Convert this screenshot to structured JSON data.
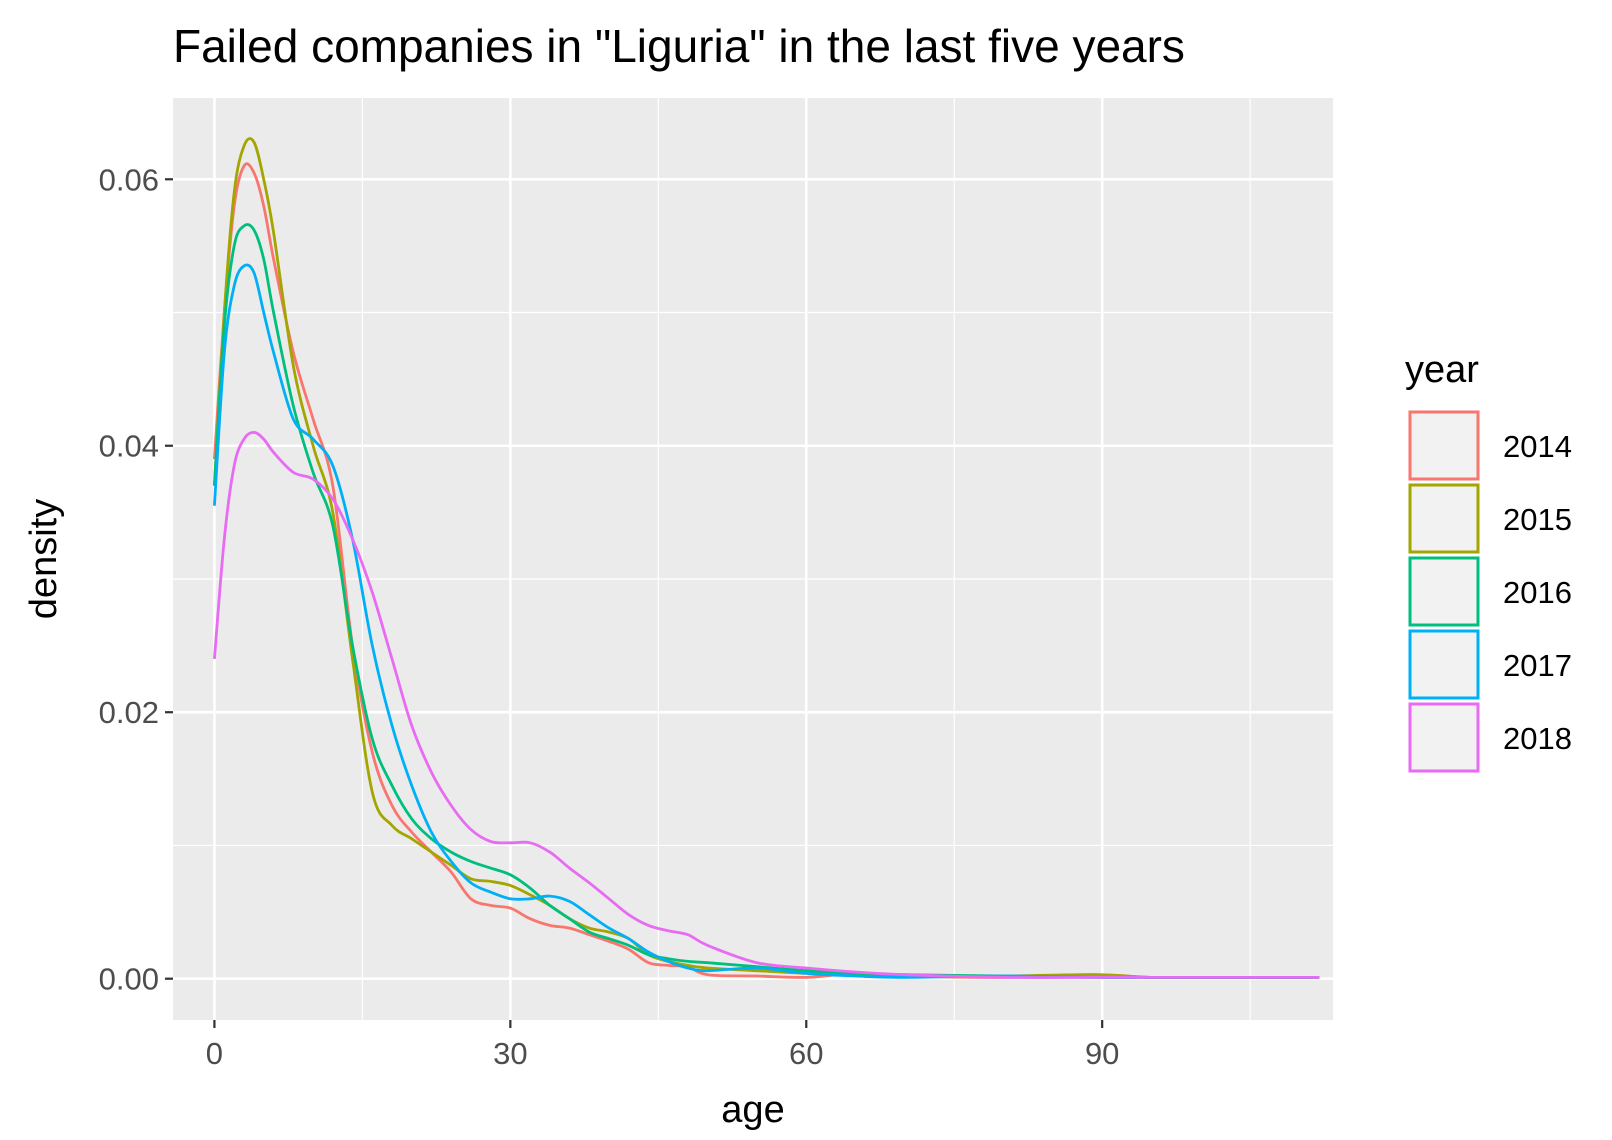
{
  "chart_data": {
    "type": "line",
    "title": "Failed companies in \"Liguria\" in the last five years",
    "xlabel": "age",
    "ylabel": "density",
    "xlim": [
      -4.2,
      113.4
    ],
    "ylim": [
      -0.0031,
      0.0661
    ],
    "x_ticks": [
      0,
      30,
      60,
      90
    ],
    "x_tick_labels": [
      "0",
      "30",
      "60",
      "90"
    ],
    "y_ticks": [
      0,
      0.02,
      0.04,
      0.06
    ],
    "y_tick_labels": [
      "0.00",
      "0.02",
      "0.04",
      "0.06"
    ],
    "grid": true,
    "legend": {
      "title": "year",
      "position": "right"
    },
    "series": [
      {
        "name": "2014",
        "color": "#F8766D",
        "x": [
          0,
          1,
          2,
          3,
          4,
          5,
          6,
          8,
          10,
          12,
          14,
          16,
          18,
          20,
          22,
          24,
          26,
          28,
          30,
          32,
          34,
          36,
          38,
          40,
          42,
          44,
          46,
          48,
          50,
          55,
          60,
          65,
          70,
          80,
          89,
          95,
          100,
          105,
          112
        ],
        "y": [
          0.039,
          0.05,
          0.058,
          0.061,
          0.0605,
          0.058,
          0.054,
          0.047,
          0.042,
          0.037,
          0.025,
          0.017,
          0.013,
          0.011,
          0.0095,
          0.008,
          0.006,
          0.0055,
          0.0053,
          0.0045,
          0.004,
          0.0038,
          0.0033,
          0.0028,
          0.0022,
          0.0012,
          0.001,
          0.0009,
          0.0003,
          0.0002,
          0.0001,
          0.0004,
          0.0002,
          0.0001,
          0.0003,
          0.0001,
          0.0001,
          0.0001,
          0.0001
        ]
      },
      {
        "name": "2015",
        "color": "#A3A500",
        "x": [
          0,
          1,
          2,
          3,
          4,
          5,
          6,
          8,
          10,
          12,
          14,
          16,
          18,
          20,
          22,
          24,
          26,
          28,
          30,
          32,
          34,
          36,
          38,
          40,
          42,
          44,
          46,
          48,
          50,
          55,
          60,
          65,
          70,
          80,
          89,
          95,
          100,
          105,
          112
        ],
        "y": [
          0.037,
          0.05,
          0.059,
          0.0625,
          0.0628,
          0.06,
          0.056,
          0.046,
          0.04,
          0.035,
          0.024,
          0.014,
          0.0115,
          0.0105,
          0.0095,
          0.0085,
          0.0075,
          0.0073,
          0.007,
          0.0063,
          0.0055,
          0.0045,
          0.0038,
          0.0035,
          0.003,
          0.0018,
          0.0013,
          0.001,
          0.0008,
          0.0006,
          0.0004,
          0.0003,
          0.0002,
          0.0002,
          0.0003,
          0.0001,
          0.0001,
          0.0001,
          0.0001
        ]
      },
      {
        "name": "2016",
        "color": "#00BF7D",
        "x": [
          0,
          1,
          2,
          3,
          4,
          5,
          6,
          8,
          10,
          12,
          14,
          16,
          18,
          20,
          22,
          24,
          26,
          28,
          30,
          32,
          34,
          36,
          38,
          40,
          42,
          44,
          46,
          48,
          50,
          55,
          60,
          65,
          70,
          80,
          89,
          95,
          100,
          105,
          112
        ],
        "y": [
          0.037,
          0.049,
          0.055,
          0.0565,
          0.0562,
          0.054,
          0.05,
          0.043,
          0.038,
          0.034,
          0.025,
          0.018,
          0.0145,
          0.012,
          0.0105,
          0.0095,
          0.0088,
          0.0083,
          0.0078,
          0.0068,
          0.0055,
          0.0045,
          0.0035,
          0.003,
          0.0025,
          0.0018,
          0.0015,
          0.0013,
          0.0012,
          0.0009,
          0.0006,
          0.0004,
          0.0003,
          0.0002,
          0.0001,
          0.0001,
          0.0001,
          0.0001,
          0.0001
        ]
      },
      {
        "name": "2017",
        "color": "#00B0F6",
        "x": [
          0,
          1,
          2,
          3,
          4,
          5,
          6,
          8,
          10,
          12,
          14,
          16,
          18,
          20,
          22,
          24,
          26,
          28,
          30,
          32,
          34,
          36,
          38,
          40,
          42,
          44,
          46,
          48,
          50,
          55,
          60,
          65,
          70,
          80,
          89,
          95,
          100,
          105,
          112
        ],
        "y": [
          0.0355,
          0.047,
          0.052,
          0.0535,
          0.053,
          0.05,
          0.047,
          0.042,
          0.0405,
          0.0385,
          0.033,
          0.025,
          0.019,
          0.0145,
          0.011,
          0.0088,
          0.0072,
          0.0065,
          0.006,
          0.006,
          0.0062,
          0.0058,
          0.0048,
          0.0038,
          0.003,
          0.002,
          0.0013,
          0.0008,
          0.0006,
          0.0008,
          0.0004,
          0.0002,
          0.0001,
          0.0002,
          0.0001,
          0.0001,
          0.0001,
          0.0001,
          0.0001
        ]
      },
      {
        "name": "2018",
        "color": "#E76BF3",
        "x": [
          0,
          1,
          2,
          3,
          4,
          5,
          6,
          8,
          10,
          12,
          14,
          16,
          18,
          20,
          22,
          24,
          26,
          28,
          30,
          32,
          34,
          36,
          38,
          40,
          42,
          44,
          46,
          48,
          50,
          55,
          60,
          65,
          70,
          80,
          89,
          95,
          100,
          105,
          112
        ],
        "y": [
          0.024,
          0.033,
          0.0385,
          0.0405,
          0.041,
          0.0405,
          0.0395,
          0.038,
          0.0375,
          0.036,
          0.033,
          0.029,
          0.024,
          0.019,
          0.0155,
          0.013,
          0.0112,
          0.0103,
          0.0102,
          0.0102,
          0.0095,
          0.0083,
          0.0072,
          0.006,
          0.0048,
          0.004,
          0.0036,
          0.0033,
          0.0025,
          0.0012,
          0.0008,
          0.0005,
          0.0003,
          0.0001,
          0.0001,
          0.0001,
          0.0001,
          0.0001,
          0.0001
        ]
      }
    ]
  }
}
